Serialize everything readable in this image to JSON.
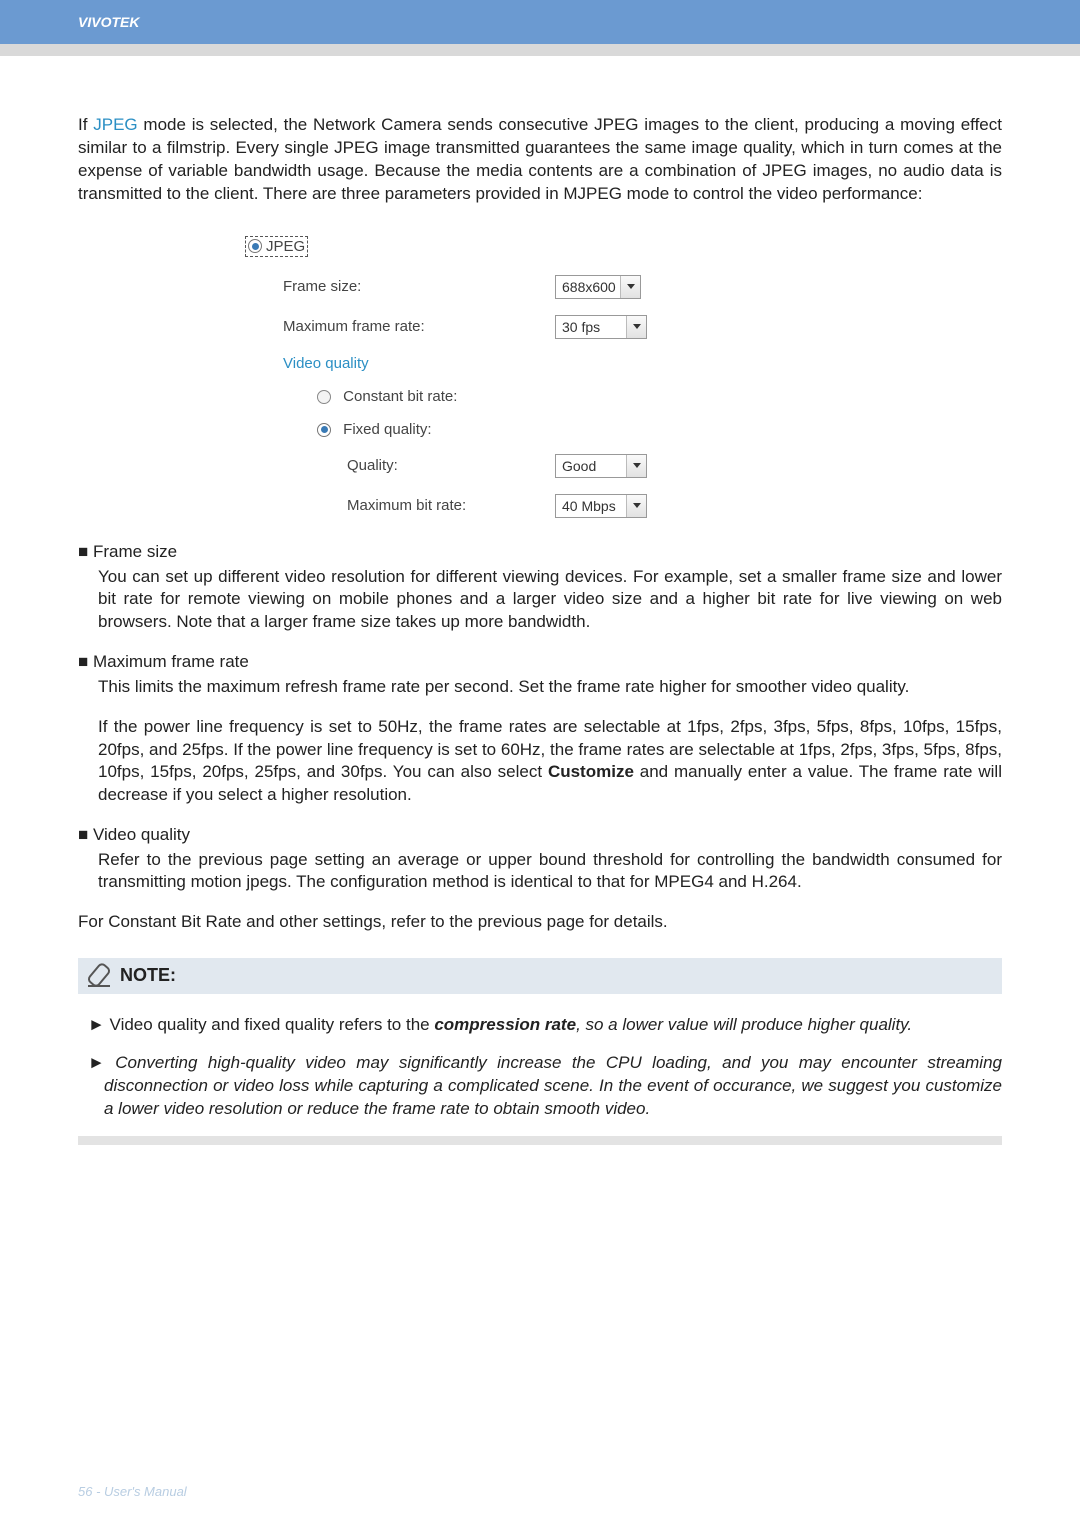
{
  "header": {
    "brand": "VIVOTEK"
  },
  "intro": {
    "text_prefix": "If ",
    "jpeg": "JPEG",
    "text_rest": " mode is selected, the Network Camera sends consecutive JPEG images to the client, producing a moving effect similar to a filmstrip. Every single JPEG image transmitted guarantees the same image quality, which in turn comes at the expense of variable bandwidth usage. Because the media contents are a combination of JPEG images, no audio data is transmitted to the client. There are three parameters provided in MJPEG mode to control the video performance:"
  },
  "settings": {
    "codec_label": "JPEG",
    "frame_size_label": "Frame size:",
    "frame_size_value": "688x600",
    "max_frame_rate_label": "Maximum frame rate:",
    "max_frame_rate_value": "30 fps",
    "video_quality_label": "Video quality",
    "constant_bitrate_label": "Constant bit rate:",
    "fixed_quality_label": "Fixed quality:",
    "quality_label": "Quality:",
    "quality_value": "Good",
    "max_bitrate_label": "Maximum bit rate:",
    "max_bitrate_value": "40 Mbps"
  },
  "bullets": {
    "frame_size": {
      "heading": "■ Frame size",
      "body": "You can set up different video resolution for different viewing devices. For example, set a smaller frame size and lower bit rate for remote viewing on mobile phones and a larger video size and a higher bit rate for live viewing on web browsers. Note that a larger frame size takes up more bandwidth."
    },
    "max_frame_rate": {
      "heading": "■ Maximum frame rate",
      "body1": "This limits the maximum refresh frame rate per second. Set the frame rate higher for smoother video quality.",
      "body2": "If the power line frequency is set to 50Hz, the frame rates are selectable at 1fps, 2fps, 3fps, 5fps, 8fps, 10fps, 15fps, 20fps, and 25fps. If the power line frequency is set to 60Hz, the frame rates are selectable at 1fps, 2fps, 3fps, 5fps, 8fps, 10fps, 15fps, 20fps, 25fps, and 30fps. You can also select ",
      "customize": "Customize",
      "body2_rest": " and manually enter a value. The frame rate will decrease if you select a higher resolution."
    },
    "video_quality": {
      "heading": "■ Video quality",
      "body": "Refer to the previous page setting an average or upper bound threshold for controlling the bandwidth consumed for transmitting motion jpegs. The configuration method is identical to that for MPEG4 and H.264."
    }
  },
  "final_line": "For Constant Bit Rate and other settings, refer to the previous page for details.",
  "note": {
    "label": "NOTE:",
    "item1_pre": "► Video quality and fixed quality refers to the ",
    "item1_bold": "compression rate",
    "item1_post": ", so a lower value will produce higher quality.",
    "item2": "► Converting high-quality video may significantly increase the CPU loading, and you may encounter streaming disconnection or video loss while capturing a complicated scene. In the event of occurance, we suggest you customize a lower video resolution or reduce the frame rate to obtain smooth video."
  },
  "footer": {
    "text": "56 - User's Manual"
  }
}
